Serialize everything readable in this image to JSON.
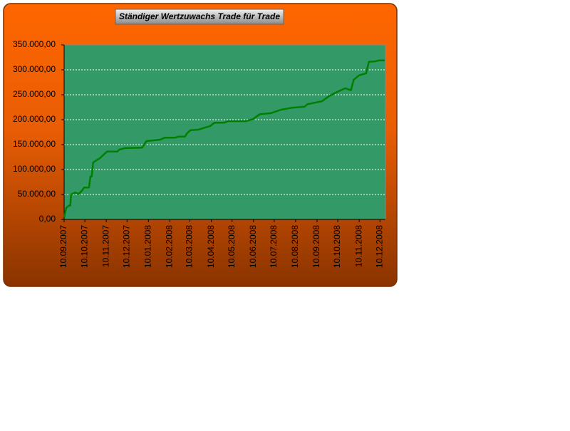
{
  "chart_data": {
    "type": "line",
    "title": "Ständiger Wertzuwachs Trade für Trade",
    "x": [
      "10.09.2007",
      "13.09.2007",
      "17.09.2007",
      "19.09.2007",
      "20.09.2007",
      "26.09.2007",
      "01.10.2007",
      "06.10.2007",
      "09.10.2007",
      "16.10.2007",
      "18.10.2007",
      "20.10.2007",
      "22.10.2007",
      "25.10.2007",
      "01.11.2007",
      "07.11.2007",
      "11.11.2007",
      "26.11.2007",
      "29.11.2007",
      "07.12.2007",
      "01.01.2008",
      "07.01.2008",
      "27.01.2008",
      "03.02.2008",
      "18.02.2008",
      "22.02.2008",
      "03.03.2008",
      "06.03.2008",
      "11.03.2008",
      "22.03.2008",
      "08.04.2008",
      "15.04.2008",
      "29.04.2008",
      "04.05.2008",
      "30.05.2008",
      "09.06.2008",
      "19.06.2008",
      "05.07.2008",
      "20.07.2008",
      "05.08.2008",
      "23.08.2008",
      "27.08.2008",
      "17.09.2008",
      "27.09.2008",
      "11.10.2008",
      "21.10.2008",
      "29.10.2008",
      "02.11.2008",
      "10.11.2008",
      "20.11.2008",
      "24.11.2008",
      "03.12.2008",
      "09.12.2008",
      "17.12.2008"
    ],
    "series": [
      {
        "color": "#008000",
        "values": [
          4000,
          23000,
          28000,
          28000,
          50000,
          54000,
          51000,
          58000,
          64000,
          64000,
          86000,
          86000,
          114000,
          117000,
          123000,
          131000,
          136000,
          136000,
          140000,
          143000,
          144000,
          157000,
          160000,
          164000,
          164000,
          166000,
          166000,
          173000,
          179000,
          180000,
          187000,
          194000,
          194000,
          197000,
          197000,
          201000,
          211000,
          213000,
          220000,
          224000,
          226000,
          231000,
          237000,
          247000,
          257000,
          263000,
          259000,
          280000,
          289000,
          293000,
          316000,
          317000,
          319000,
          319000
        ]
      }
    ],
    "xlim": [
      "10.09.2007",
      "18.12.2008"
    ],
    "xticks": [
      "10.09.2007",
      "10.10.2007",
      "10.11.2007",
      "10.12.2007",
      "10.01.2008",
      "10.02.2008",
      "10.03.2008",
      "10.04.2008",
      "10.05.2008",
      "10.06.2008",
      "10.07.2008",
      "10.08.2008",
      "10.09.2008",
      "10.10.2008",
      "10.11.2008",
      "10.12.2008"
    ],
    "ylim": [
      0,
      350000
    ],
    "yticks": [
      {
        "value": 0,
        "label": "0,00"
      },
      {
        "value": 50000,
        "label": "50.000,00"
      },
      {
        "value": 100000,
        "label": "100.000,00"
      },
      {
        "value": 150000,
        "label": "150.000,00"
      },
      {
        "value": 200000,
        "label": "200.000,00"
      },
      {
        "value": 250000,
        "label": "250.000,00"
      },
      {
        "value": 300000,
        "label": "300.000,00"
      },
      {
        "value": 350000,
        "label": "350.000,00"
      }
    ],
    "grid": true,
    "plot_color": "#339966"
  }
}
